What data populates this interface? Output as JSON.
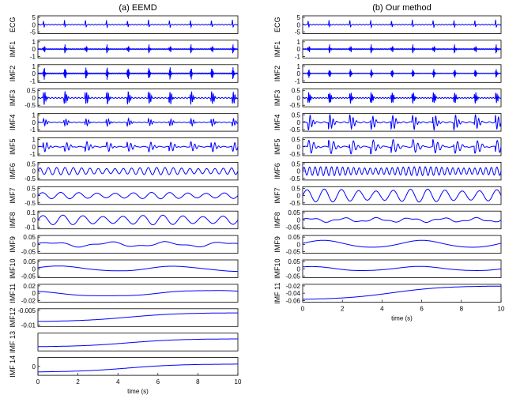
{
  "chart_data": [
    {
      "type": "line",
      "title": "(a) EEMD",
      "xlabel": "time (s)",
      "xlim": [
        0,
        10
      ],
      "xticks": [
        "0",
        "2",
        "4",
        "6",
        "8",
        "10"
      ],
      "grid": false,
      "line_color": "#0000ff",
      "panels": [
        {
          "name": "ECG",
          "ylim": [
            -5,
            5
          ],
          "yticks": [
            "5",
            "0",
            "-5"
          ],
          "signal": "ecg",
          "amp": 0.6
        },
        {
          "name": "IMF1",
          "ylim": [
            -1,
            1
          ],
          "yticks": [
            "1",
            "0",
            "-1"
          ],
          "signal": "burst",
          "amp": 0.55,
          "freq": 40
        },
        {
          "name": "IMF2",
          "ylim": [
            -1,
            1
          ],
          "yticks": [
            "1",
            "0",
            "-1"
          ],
          "signal": "burst",
          "amp": 0.85,
          "freq": 28
        },
        {
          "name": "IMF3",
          "ylim": [
            -0.5,
            0.5
          ],
          "yticks": [
            "0.5",
            "0",
            "-0.5"
          ],
          "signal": "burst",
          "amp": 0.8,
          "freq": 12
        },
        {
          "name": "IMF4",
          "ylim": [
            -1,
            1
          ],
          "yticks": [
            "1",
            "0",
            "-1"
          ],
          "signal": "burst",
          "amp": 0.45,
          "freq": 8
        },
        {
          "name": "IMF5",
          "ylim": [
            -1,
            1
          ],
          "yticks": [
            "1",
            "0",
            "-1"
          ],
          "signal": "burst",
          "amp": 0.6,
          "freq": 5
        },
        {
          "name": "IMF6",
          "ylim": [
            -0.5,
            0.5
          ],
          "yticks": [
            "0.5",
            "0",
            "-0.5"
          ],
          "signal": "sine",
          "amp": 0.45,
          "freq": 2.4
        },
        {
          "name": "IMF7",
          "ylim": [
            -0.5,
            0.5
          ],
          "yticks": [
            "0.5",
            "0",
            "-0.5"
          ],
          "signal": "sine",
          "amp": 0.4,
          "freq": 1.1
        },
        {
          "name": "IMF8",
          "ylim": [
            -0.1,
            0.1
          ],
          "yticks": [
            "0.1",
            "0",
            "-0.1"
          ],
          "signal": "sine",
          "amp": 0.6,
          "freq": 1.0
        },
        {
          "name": "IMF9",
          "ylim": [
            -0.05,
            0.05
          ],
          "yticks": [
            "0.05",
            "0",
            "-0.05"
          ],
          "signal": "sine2",
          "amp": 0.35,
          "freq": 0.35
        },
        {
          "name": "IMF10",
          "ylim": [
            -0.05,
            0.05
          ],
          "yticks": [
            "0.05",
            "0",
            "-0.05"
          ],
          "signal": "sine",
          "amp": 0.35,
          "freq": 0.17,
          "phase": 0.5
        },
        {
          "name": "IMF11",
          "ylim": [
            -0.02,
            0.02
          ],
          "yticks": [
            "0.02",
            "0",
            "-0.02"
          ],
          "signal": "sine",
          "amp": 0.45,
          "freq": 0.1,
          "phase": 2.5
        },
        {
          "name": "IMF12",
          "ylim": [
            -0.01,
            0
          ],
          "yticks": [
            "-0.005",
            "-0.01"
          ],
          "signal": "rise",
          "from": 0.25,
          "to": 0.8
        },
        {
          "name": "IMF 13",
          "ylim": [
            -1,
            1
          ],
          "yticks": [],
          "signal": "rise",
          "from": 0.2,
          "to": 0.7
        },
        {
          "name": "IMF 14",
          "ylim": [
            -1,
            1
          ],
          "yticks": [
            "0"
          ],
          "signal": "rise",
          "from": 0.15,
          "to": 0.65
        }
      ]
    },
    {
      "type": "line",
      "title": "(b) Our method",
      "xlabel": "time (s)",
      "xlim": [
        0,
        10
      ],
      "xticks": [
        "0",
        "2",
        "4",
        "6",
        "8",
        "10"
      ],
      "grid": false,
      "line_color": "#0000ff",
      "panels": [
        {
          "name": "ECG",
          "ylim": [
            -5,
            5
          ],
          "yticks": [
            "5",
            "0",
            "-5"
          ],
          "signal": "ecg",
          "amp": 0.6
        },
        {
          "name": "IMF1",
          "ylim": [
            -1,
            1
          ],
          "yticks": [
            "1",
            "0",
            "-1"
          ],
          "signal": "burst",
          "amp": 0.55,
          "freq": 40
        },
        {
          "name": "IMF2",
          "ylim": [
            -1,
            1
          ],
          "yticks": [
            "1",
            "0",
            "-1"
          ],
          "signal": "burst",
          "amp": 0.6,
          "freq": 28
        },
        {
          "name": "IMF3",
          "ylim": [
            -0.5,
            0.5
          ],
          "yticks": [
            "0.5",
            "0",
            "-0.5"
          ],
          "signal": "burst",
          "amp": 0.7,
          "freq": 14
        },
        {
          "name": "IMF4",
          "ylim": [
            -0.5,
            0.5
          ],
          "yticks": [
            "0.5",
            "0",
            "-0.5"
          ],
          "signal": "burst",
          "amp": 0.9,
          "freq": 6
        },
        {
          "name": "IMF5",
          "ylim": [
            -0.5,
            0.5
          ],
          "yticks": [
            "0.5",
            "0",
            "-0.5"
          ],
          "signal": "burst",
          "amp": 0.85,
          "freq": 4
        },
        {
          "name": "IMF6",
          "ylim": [
            -0.5,
            0.5
          ],
          "yticks": [
            "0.5",
            "0",
            "-0.5"
          ],
          "signal": "sine",
          "amp": 0.55,
          "freq": 3.6
        },
        {
          "name": "IMF7",
          "ylim": [
            -0.5,
            0.5
          ],
          "yticks": [
            "0.5",
            "0",
            "-0.5"
          ],
          "signal": "sine",
          "amp": 0.8,
          "freq": 1.15
        },
        {
          "name": "IMF8",
          "ylim": [
            -0.05,
            0.05
          ],
          "yticks": [
            "0.05",
            "0",
            "-0.05"
          ],
          "signal": "sine2",
          "amp": 0.3,
          "freq": 0.6
        },
        {
          "name": "IMF9",
          "ylim": [
            -0.05,
            0.05
          ],
          "yticks": [
            "0.05",
            "0",
            "-0.05"
          ],
          "signal": "sine",
          "amp": 0.5,
          "freq": 0.2,
          "phase": 0.3
        },
        {
          "name": "IMF10",
          "ylim": [
            -0.05,
            0.05
          ],
          "yticks": [
            "0.05",
            "0",
            "-0.05"
          ],
          "signal": "sine",
          "amp": 0.3,
          "freq": 0.18,
          "phase": 1.2
        },
        {
          "name": "IMF 11",
          "ylim": [
            -0.06,
            -0.02
          ],
          "yticks": [
            "-0.02",
            "-0.04",
            "-0.06"
          ],
          "signal": "rise",
          "from": 0.1,
          "to": 0.95
        }
      ]
    }
  ]
}
